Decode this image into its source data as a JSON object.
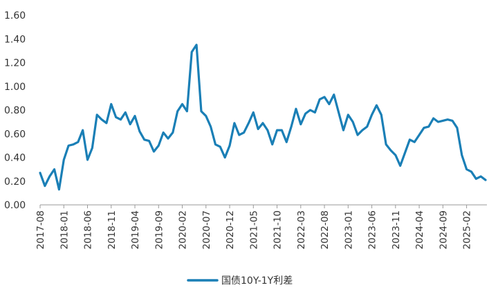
{
  "chart_data": {
    "type": "line",
    "title": "",
    "xlabel": "",
    "ylabel": "",
    "ylim": [
      0,
      1.6
    ],
    "y_ticks": [
      "0.00",
      "0.20",
      "0.40",
      "0.60",
      "0.80",
      "1.00",
      "1.20",
      "1.40",
      "1.60"
    ],
    "x_tick_labels": [
      "2017-08",
      "2018-01",
      "2018-06",
      "2018-11",
      "2019-04",
      "2019-09",
      "2020-02",
      "2020-07",
      "2020-12",
      "2021-05",
      "2021-10",
      "2022-03",
      "2022-08",
      "2023-01",
      "2023-06",
      "2023-11",
      "2024-04",
      "2024-09",
      "2025-02"
    ],
    "grid": false,
    "legend_position": "bottom",
    "colors": {
      "series": "#1a7fb6",
      "axis": "#999999"
    },
    "series": [
      {
        "name": "国债10Y-1Y利差",
        "x": [
          "2017-08",
          "2017-09",
          "2017-10",
          "2017-11",
          "2017-12",
          "2018-01",
          "2018-02",
          "2018-03",
          "2018-04",
          "2018-05",
          "2018-06",
          "2018-07",
          "2018-08",
          "2018-09",
          "2018-10",
          "2018-11",
          "2018-12",
          "2019-01",
          "2019-02",
          "2019-03",
          "2019-04",
          "2019-05",
          "2019-06",
          "2019-07",
          "2019-08",
          "2019-09",
          "2019-10",
          "2019-11",
          "2019-12",
          "2020-01",
          "2020-02",
          "2020-03",
          "2020-04",
          "2020-05",
          "2020-06",
          "2020-07",
          "2020-08",
          "2020-09",
          "2020-10",
          "2020-11",
          "2020-12",
          "2021-01",
          "2021-02",
          "2021-03",
          "2021-04",
          "2021-05",
          "2021-06",
          "2021-07",
          "2021-08",
          "2021-09",
          "2021-10",
          "2021-11",
          "2021-12",
          "2022-01",
          "2022-02",
          "2022-03",
          "2022-04",
          "2022-05",
          "2022-06",
          "2022-07",
          "2022-08",
          "2022-09",
          "2022-10",
          "2022-11",
          "2022-12",
          "2023-01",
          "2023-02",
          "2023-03",
          "2023-04",
          "2023-05",
          "2023-06",
          "2023-07",
          "2023-08",
          "2023-09",
          "2023-10",
          "2023-11",
          "2023-12",
          "2024-01",
          "2024-02",
          "2024-03",
          "2024-04",
          "2024-05",
          "2024-06",
          "2024-07",
          "2024-08",
          "2024-09",
          "2024-10",
          "2024-11",
          "2024-12",
          "2025-01",
          "2025-02",
          "2025-03",
          "2025-04",
          "2025-05",
          "2025-06"
        ],
        "values": [
          0.27,
          0.16,
          0.24,
          0.3,
          0.13,
          0.38,
          0.5,
          0.51,
          0.53,
          0.63,
          0.38,
          0.48,
          0.76,
          0.72,
          0.69,
          0.85,
          0.74,
          0.72,
          0.78,
          0.68,
          0.75,
          0.62,
          0.55,
          0.54,
          0.45,
          0.5,
          0.61,
          0.56,
          0.61,
          0.79,
          0.85,
          0.79,
          1.29,
          1.35,
          0.79,
          0.75,
          0.66,
          0.51,
          0.49,
          0.4,
          0.5,
          0.69,
          0.59,
          0.61,
          0.69,
          0.78,
          0.64,
          0.69,
          0.63,
          0.51,
          0.63,
          0.63,
          0.53,
          0.66,
          0.81,
          0.68,
          0.77,
          0.8,
          0.78,
          0.89,
          0.91,
          0.85,
          0.93,
          0.78,
          0.63,
          0.76,
          0.7,
          0.59,
          0.63,
          0.66,
          0.76,
          0.84,
          0.76,
          0.51,
          0.46,
          0.42,
          0.33,
          0.44,
          0.55,
          0.53,
          0.59,
          0.65,
          0.66,
          0.73,
          0.7,
          0.71,
          0.72,
          0.71,
          0.65,
          0.42,
          0.3,
          0.28,
          0.22,
          0.24,
          0.21
        ]
      }
    ]
  }
}
